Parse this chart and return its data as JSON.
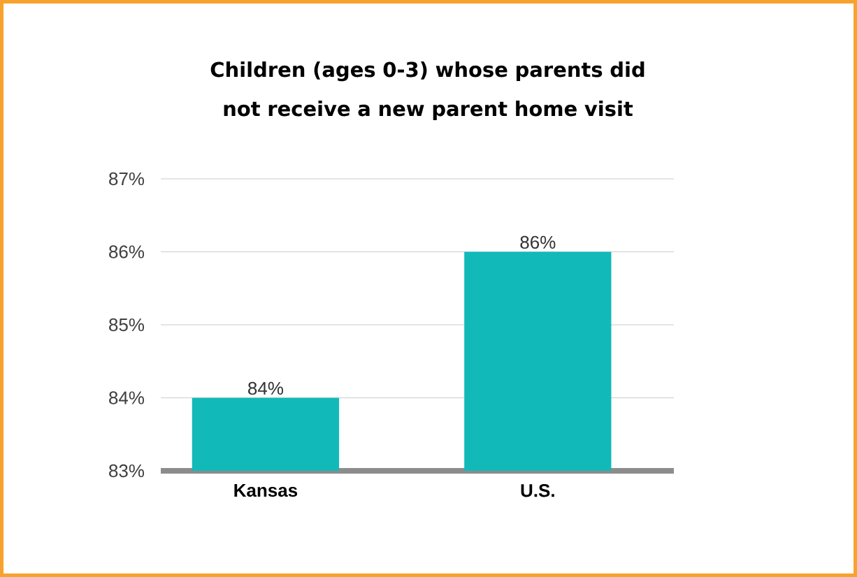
{
  "chart_data": {
    "type": "bar",
    "title": "Children (ages 0-3) whose parents did not receive a new parent home visit",
    "categories": [
      "Kansas",
      "U.S."
    ],
    "values": [
      84,
      86
    ],
    "value_labels": [
      "84%",
      "86%"
    ],
    "color": "#12b9b9",
    "ylim": [
      83,
      87
    ],
    "yticks": [
      {
        "value": 83,
        "label": "83%"
      },
      {
        "value": 84,
        "label": "84%"
      },
      {
        "value": 85,
        "label": "85%"
      },
      {
        "value": 86,
        "label": "86%"
      },
      {
        "value": 87,
        "label": "87%"
      }
    ],
    "grid": "y"
  }
}
